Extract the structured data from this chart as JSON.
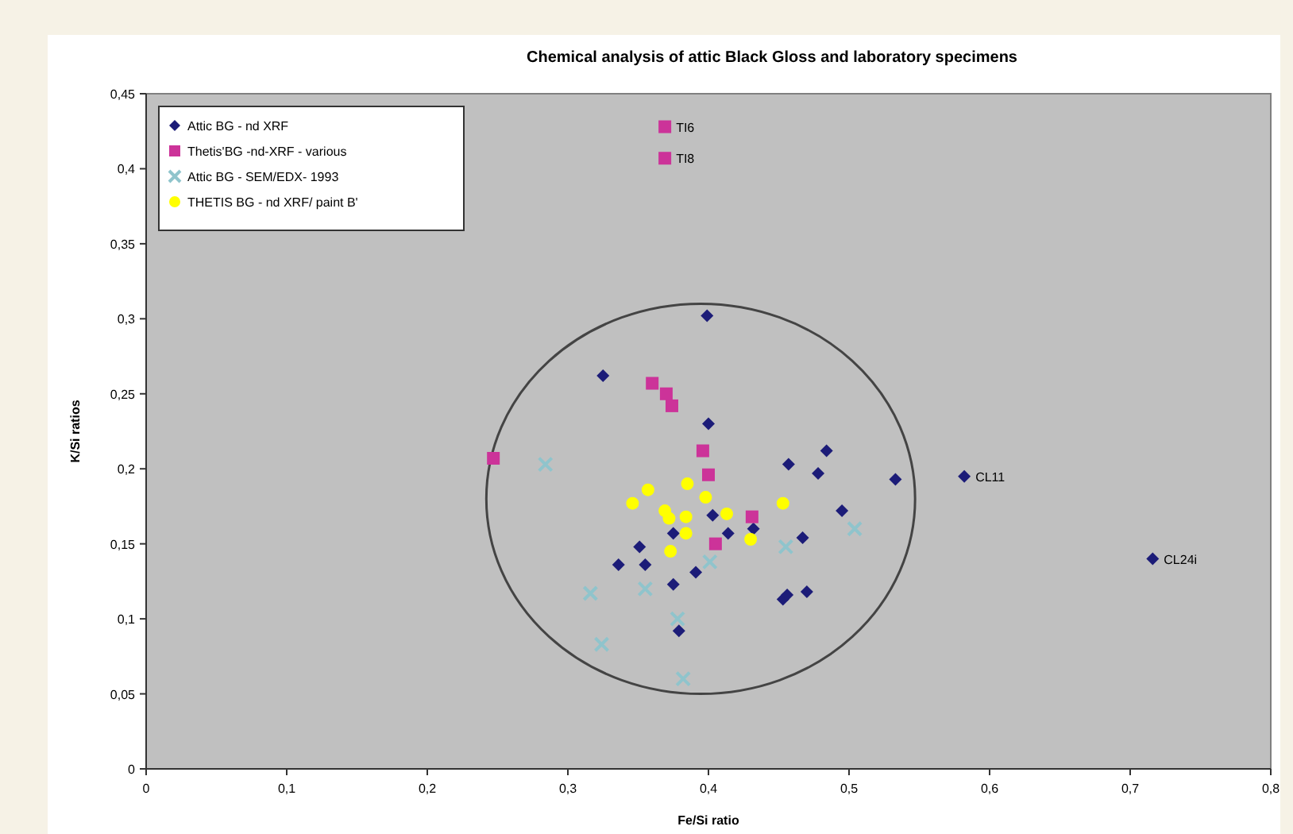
{
  "chart_data": {
    "type": "scatter",
    "title": "Chemical analysis of attic Black Gloss and laboratory specimens",
    "xlabel": "Fe/Si ratio",
    "ylabel": "K/Si ratios",
    "xlim": [
      0,
      0.8
    ],
    "ylim": [
      0,
      0.45
    ],
    "xticks": [
      0,
      {
        "value": 0.1,
        "label": "0,1"
      },
      {
        "value": 0.2,
        "label": "0,2"
      },
      {
        "value": 0.3,
        "label": "0,3"
      },
      {
        "value": 0.4,
        "label": "0,4"
      },
      {
        "value": 0.5,
        "label": "0,5"
      },
      {
        "value": 0.6,
        "label": "0,6"
      },
      {
        "value": 0.7,
        "label": "0,7"
      },
      {
        "value": 0.8,
        "label": "0,8"
      }
    ],
    "yticks": [
      0,
      {
        "value": 0.05,
        "label": "0,05"
      },
      {
        "value": 0.1,
        "label": "0,1"
      },
      {
        "value": 0.15,
        "label": "0,15"
      },
      {
        "value": 0.2,
        "label": "0,2"
      },
      {
        "value": 0.25,
        "label": "0,25"
      },
      {
        "value": 0.3,
        "label": "0,3"
      },
      {
        "value": 0.35,
        "label": "0,35"
      },
      {
        "value": 0.4,
        "label": "0,4"
      },
      {
        "value": 0.45,
        "label": "0,45"
      }
    ],
    "legend": "top left",
    "grid": false,
    "series": [
      {
        "name": "Attic BG - nd XRF",
        "color": "#1c1c78",
        "marker": "diamond",
        "x": [
          0.399,
          0.325,
          0.4,
          0.457,
          0.484,
          0.478,
          0.533,
          0.495,
          0.403,
          0.414,
          0.432,
          0.375,
          0.351,
          0.336,
          0.355,
          0.391,
          0.375,
          0.467,
          0.47,
          0.453,
          0.456,
          0.379,
          0.582,
          0.716
        ],
        "values": [
          0.302,
          0.262,
          0.23,
          0.203,
          0.212,
          0.197,
          0.193,
          0.172,
          0.169,
          0.157,
          0.16,
          0.157,
          0.148,
          0.136,
          0.136,
          0.131,
          0.123,
          0.154,
          0.118,
          0.113,
          0.116,
          0.092,
          0.195,
          0.14
        ]
      },
      {
        "name": "Thetis'BG -nd-XRF - various",
        "color": "#cc3399",
        "marker": "square",
        "x": [
          0.247,
          0.36,
          0.37,
          0.374,
          0.396,
          0.4,
          0.431,
          0.405,
          0.369,
          0.369
        ],
        "values": [
          0.207,
          0.257,
          0.25,
          0.242,
          0.212,
          0.196,
          0.168,
          0.15,
          0.428,
          0.407
        ]
      },
      {
        "name": "Attic BG - SEM/EDX- 1993",
        "color": "#8fc4cc",
        "marker": "cross",
        "x": [
          0.284,
          0.316,
          0.355,
          0.401,
          0.455,
          0.504,
          0.378,
          0.324,
          0.382
        ],
        "values": [
          0.203,
          0.117,
          0.12,
          0.138,
          0.148,
          0.16,
          0.1,
          0.083,
          0.06
        ]
      },
      {
        "name": "THETIS BG - nd XRF/ paint B'",
        "color": "#ffff00",
        "marker": "circle",
        "x": [
          0.346,
          0.357,
          0.385,
          0.398,
          0.369,
          0.372,
          0.384,
          0.384,
          0.413,
          0.373,
          0.43,
          0.453
        ],
        "values": [
          0.177,
          0.186,
          0.19,
          0.181,
          0.172,
          0.167,
          0.168,
          0.157,
          0.17,
          0.145,
          0.153,
          0.177
        ]
      }
    ],
    "annotations": [
      {
        "text": "TI6",
        "x": 0.369,
        "y": 0.428
      },
      {
        "text": "TI8",
        "x": 0.369,
        "y": 0.407
      },
      {
        "text": "CL11",
        "x": 0.582,
        "y": 0.195
      },
      {
        "text": "CL24i",
        "x": 0.716,
        "y": 0.14
      }
    ]
  }
}
